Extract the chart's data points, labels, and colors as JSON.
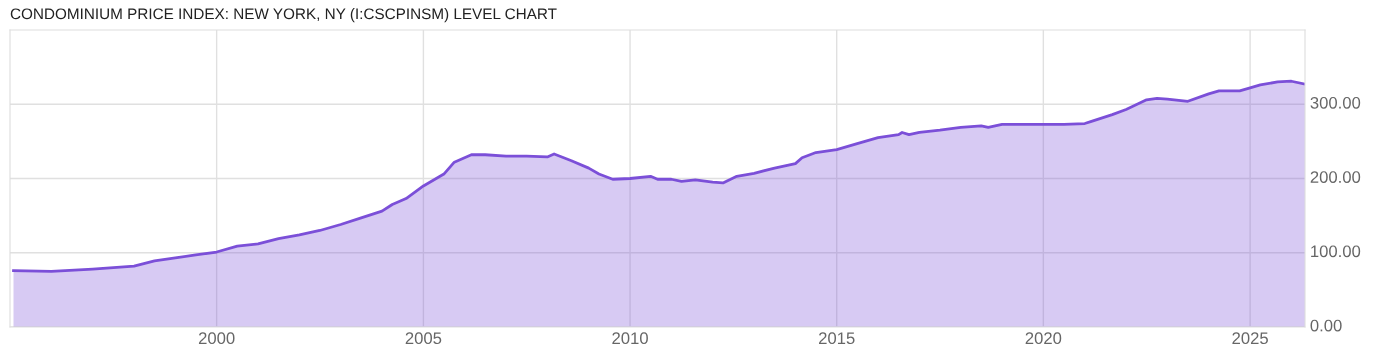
{
  "chart_data": {
    "type": "area",
    "title": "CONDOMINIUM PRICE INDEX: NEW YORK, NY (I:CSCPINSM) LEVEL CHART",
    "x": [
      "1995-02",
      "1996-01",
      "1997-01",
      "1998-01",
      "1998-07",
      "1999-01",
      "1999-07",
      "2000-01",
      "2000-07",
      "2001-01",
      "2001-07",
      "2002-01",
      "2002-07",
      "2003-01",
      "2003-07",
      "2004-01",
      "2004-04",
      "2004-08",
      "2005-01",
      "2005-07",
      "2005-10",
      "2006-03",
      "2006-07",
      "2007-01",
      "2007-07",
      "2008-01",
      "2008-03",
      "2008-08",
      "2009-01",
      "2009-04",
      "2009-08",
      "2010-01",
      "2010-07",
      "2010-09",
      "2011-01",
      "2011-04",
      "2011-08",
      "2012-01",
      "2012-04",
      "2012-08",
      "2013-01",
      "2013-07",
      "2014-01",
      "2014-03",
      "2014-07",
      "2015-01",
      "2015-07",
      "2016-01",
      "2016-07",
      "2016-08",
      "2016-10",
      "2017-01",
      "2017-07",
      "2018-01",
      "2018-07",
      "2018-09",
      "2019-01",
      "2019-07",
      "2020-01",
      "2020-07",
      "2021-01",
      "2021-03",
      "2021-09",
      "2022-01",
      "2022-07",
      "2022-10",
      "2023-01",
      "2023-07",
      "2024-01",
      "2024-04",
      "2024-10",
      "2025-01",
      "2025-04",
      "2025-09",
      "2026-01",
      "2026-05"
    ],
    "series": [
      {
        "color": "#7b4fd8",
        "values": [
          76,
          75,
          78,
          82,
          89,
          93,
          97,
          101,
          109,
          112,
          119,
          124,
          130,
          138,
          147,
          156,
          165,
          173,
          190,
          206,
          222,
          232,
          232,
          230,
          230,
          229,
          233,
          224,
          214,
          206,
          199,
          200,
          203,
          199,
          199,
          196,
          198,
          195,
          194,
          203,
          207,
          214,
          220,
          228,
          235,
          239,
          247,
          255,
          259,
          262,
          259,
          262,
          265,
          269,
          271,
          269,
          273,
          273,
          273,
          273,
          274,
          277,
          286,
          293,
          306,
          308,
          307,
          304,
          314,
          318,
          318,
          322,
          326,
          330,
          331,
          327
        ]
      }
    ],
    "xlim": [
      "1995-01",
      "2026-05"
    ],
    "xticks": [
      "2000",
      "2005",
      "2010",
      "2015",
      "2020",
      "2025"
    ],
    "ylim": [
      0,
      400
    ],
    "yticks": [
      {
        "value": 0,
        "label": "0.00"
      },
      {
        "value": 100,
        "label": "100.00"
      },
      {
        "value": 200,
        "label": "200.00"
      },
      {
        "value": 300,
        "label": "300.00"
      }
    ],
    "grid": true,
    "legend": false
  }
}
